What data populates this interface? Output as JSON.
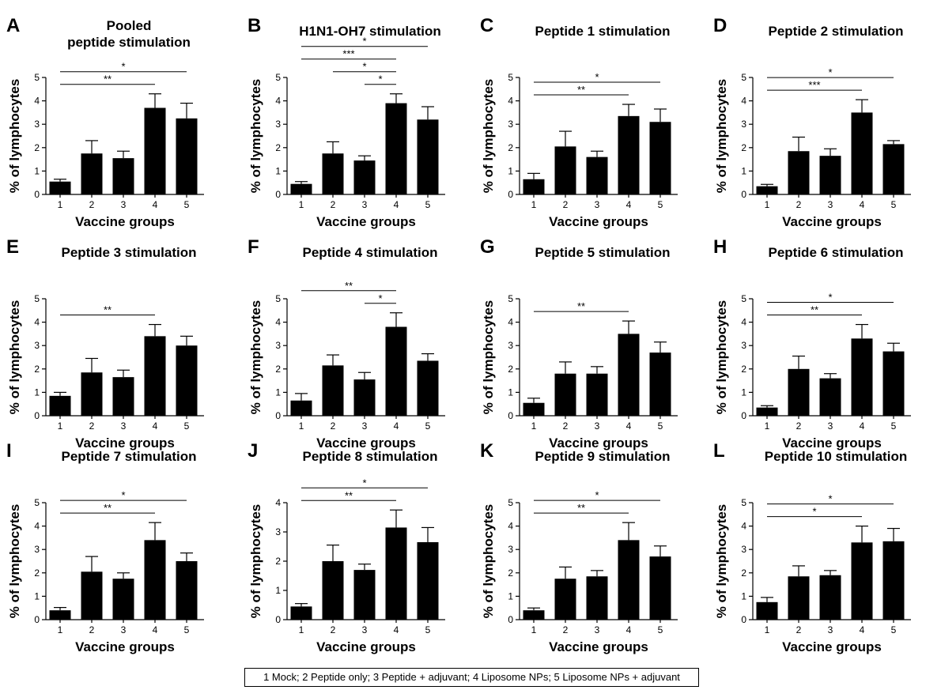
{
  "legend": "1 Mock; 2 Peptide only; 3 Peptide + adjuvant; 4 Liposome NPs; 5 Liposome NPs + adjuvant",
  "chart_data": [
    {
      "type": "bar",
      "panel": "A",
      "title": "Pooled\npeptide stimulation",
      "xlabel": "Vaccine groups",
      "ylabel": "% of lymphocytes",
      "categories": [
        "1",
        "2",
        "3",
        "4",
        "5"
      ],
      "values": [
        0.55,
        1.75,
        1.55,
        3.7,
        3.25
      ],
      "errors": [
        0.1,
        0.55,
        0.3,
        0.6,
        0.65
      ],
      "ylim": [
        0,
        5
      ],
      "yticks": [
        "0",
        "1",
        "2",
        "3",
        "4",
        "5"
      ],
      "significance": [
        {
          "from": 1,
          "to": 4,
          "label": "**"
        },
        {
          "from": 1,
          "to": 5,
          "label": "*"
        }
      ]
    },
    {
      "type": "bar",
      "panel": "B",
      "title": "H1N1-OH7 stimulation",
      "xlabel": "Vaccine groups",
      "ylabel": "% of lymphocytes",
      "categories": [
        "1",
        "2",
        "3",
        "4",
        "5"
      ],
      "values": [
        0.45,
        1.75,
        1.45,
        3.9,
        3.2
      ],
      "errors": [
        0.1,
        0.5,
        0.2,
        0.4,
        0.55
      ],
      "ylim": [
        0,
        5
      ],
      "yticks": [
        "0",
        "1",
        "2",
        "3",
        "4",
        "5"
      ],
      "significance": [
        {
          "from": 3,
          "to": 4,
          "label": "*"
        },
        {
          "from": 2,
          "to": 4,
          "label": "*"
        },
        {
          "from": 1,
          "to": 4,
          "label": "***"
        },
        {
          "from": 1,
          "to": 5,
          "label": "*"
        }
      ]
    },
    {
      "type": "bar",
      "panel": "C",
      "title": "Peptide 1 stimulation",
      "xlabel": "Vaccine groups",
      "ylabel": "% of lymphocytes",
      "categories": [
        "1",
        "2",
        "3",
        "4",
        "5"
      ],
      "values": [
        0.65,
        2.05,
        1.6,
        3.35,
        3.1
      ],
      "errors": [
        0.25,
        0.65,
        0.25,
        0.5,
        0.55
      ],
      "ylim": [
        0,
        5
      ],
      "yticks": [
        "0",
        "1",
        "2",
        "3",
        "4",
        "5"
      ],
      "significance": [
        {
          "from": 1,
          "to": 4,
          "label": "**"
        },
        {
          "from": 1,
          "to": 5,
          "label": "*"
        }
      ]
    },
    {
      "type": "bar",
      "panel": "D",
      "title": "Peptide 2 stimulation",
      "xlabel": "Vaccine groups",
      "ylabel": "% of lymphocytes",
      "categories": [
        "1",
        "2",
        "3",
        "4",
        "5"
      ],
      "values": [
        0.35,
        1.85,
        1.65,
        3.5,
        2.15
      ],
      "errors": [
        0.08,
        0.6,
        0.3,
        0.55,
        0.15
      ],
      "ylim": [
        0,
        5
      ],
      "yticks": [
        "0",
        "1",
        "2",
        "3",
        "4",
        "5"
      ],
      "significance": [
        {
          "from": 1,
          "to": 4,
          "label": "***"
        },
        {
          "from": 1,
          "to": 5,
          "label": "*"
        }
      ]
    },
    {
      "type": "bar",
      "panel": "E",
      "title": "Peptide 3 stimulation",
      "xlabel": "Vaccine groups",
      "ylabel": "% of lymphocytes",
      "categories": [
        "1",
        "2",
        "3",
        "4",
        "5"
      ],
      "values": [
        0.85,
        1.85,
        1.65,
        3.4,
        3.0
      ],
      "errors": [
        0.15,
        0.6,
        0.3,
        0.5,
        0.4
      ],
      "ylim": [
        0,
        5
      ],
      "yticks": [
        "0",
        "1",
        "2",
        "3",
        "4",
        "5"
      ],
      "significance": [
        {
          "from": 1,
          "to": 4,
          "label": "**"
        }
      ]
    },
    {
      "type": "bar",
      "panel": "F",
      "title": "Peptide 4 stimulation",
      "xlabel": "Vaccine groups",
      "ylabel": "% of lymphocytes",
      "categories": [
        "1",
        "2",
        "3",
        "4",
        "5"
      ],
      "values": [
        0.65,
        2.15,
        1.55,
        3.8,
        2.35
      ],
      "errors": [
        0.3,
        0.45,
        0.3,
        0.6,
        0.3
      ],
      "ylim": [
        0,
        5
      ],
      "yticks": [
        "0",
        "1",
        "2",
        "3",
        "4",
        "5"
      ],
      "significance": [
        {
          "from": 3,
          "to": 4,
          "label": "*"
        },
        {
          "from": 1,
          "to": 4,
          "label": "**"
        }
      ]
    },
    {
      "type": "bar",
      "panel": "G",
      "title": "Peptide 5 stimulation",
      "xlabel": "Vaccine groups",
      "ylabel": "% of lymphocytes",
      "categories": [
        "1",
        "2",
        "3",
        "4",
        "5"
      ],
      "values": [
        0.55,
        1.8,
        1.8,
        3.5,
        2.7
      ],
      "errors": [
        0.2,
        0.5,
        0.3,
        0.55,
        0.45
      ],
      "ylim": [
        0,
        5
      ],
      "yticks": [
        "0",
        "1",
        "2",
        "3",
        "4",
        "5"
      ],
      "significance": [
        {
          "from": 1,
          "to": 4,
          "label": "**"
        }
      ]
    },
    {
      "type": "bar",
      "panel": "H",
      "title": "Peptide 6 stimulation",
      "xlabel": "Vaccine groups",
      "ylabel": "% of lymphocytes",
      "categories": [
        "1",
        "2",
        "3",
        "4",
        "5"
      ],
      "values": [
        0.35,
        2.0,
        1.6,
        3.3,
        2.75
      ],
      "errors": [
        0.08,
        0.55,
        0.2,
        0.6,
        0.35
      ],
      "ylim": [
        0,
        5
      ],
      "yticks": [
        "0",
        "1",
        "2",
        "3",
        "4",
        "5"
      ],
      "significance": [
        {
          "from": 1,
          "to": 4,
          "label": "**"
        },
        {
          "from": 1,
          "to": 5,
          "label": "*"
        }
      ]
    },
    {
      "type": "bar",
      "panel": "I",
      "title": "Peptide 7 stimulation",
      "xlabel": "Vaccine groups",
      "ylabel": "% of lymphocytes",
      "categories": [
        "1",
        "2",
        "3",
        "4",
        "5"
      ],
      "values": [
        0.4,
        2.05,
        1.75,
        3.4,
        2.5
      ],
      "errors": [
        0.12,
        0.65,
        0.25,
        0.75,
        0.35
      ],
      "ylim": [
        0,
        5
      ],
      "yticks": [
        "0",
        "1",
        "2",
        "3",
        "4",
        "5"
      ],
      "significance": [
        {
          "from": 1,
          "to": 4,
          "label": "**"
        },
        {
          "from": 1,
          "to": 5,
          "label": "*"
        }
      ]
    },
    {
      "type": "bar",
      "panel": "J",
      "title": "Peptide 8 stimulation",
      "xlabel": "Vaccine groups",
      "ylabel": "% of lymphocytes",
      "categories": [
        "1",
        "2",
        "3",
        "4",
        "5"
      ],
      "values": [
        0.45,
        2.0,
        1.7,
        3.15,
        2.65
      ],
      "errors": [
        0.1,
        0.55,
        0.2,
        0.6,
        0.5
      ],
      "ylim": [
        0,
        4
      ],
      "yticks": [
        "0",
        "1",
        "2",
        "3",
        "4"
      ],
      "significance": [
        {
          "from": 1,
          "to": 4,
          "label": "**"
        },
        {
          "from": 1,
          "to": 5,
          "label": "*"
        }
      ]
    },
    {
      "type": "bar",
      "panel": "K",
      "title": "Peptide 9 stimulation",
      "xlabel": "Vaccine groups",
      "ylabel": "% of lymphocytes",
      "categories": [
        "1",
        "2",
        "3",
        "4",
        "5"
      ],
      "values": [
        0.4,
        1.75,
        1.85,
        3.4,
        2.7
      ],
      "errors": [
        0.1,
        0.5,
        0.25,
        0.75,
        0.45
      ],
      "ylim": [
        0,
        5
      ],
      "yticks": [
        "0",
        "1",
        "2",
        "3",
        "4",
        "5"
      ],
      "significance": [
        {
          "from": 1,
          "to": 4,
          "label": "**"
        },
        {
          "from": 1,
          "to": 5,
          "label": "*"
        }
      ]
    },
    {
      "type": "bar",
      "panel": "L",
      "title": "Peptide 10 stimulation",
      "xlabel": "Vaccine groups",
      "ylabel": "% of lymphocytes",
      "categories": [
        "1",
        "2",
        "3",
        "4",
        "5"
      ],
      "values": [
        0.75,
        1.85,
        1.9,
        3.3,
        3.35
      ],
      "errors": [
        0.2,
        0.45,
        0.2,
        0.7,
        0.55
      ],
      "ylim": [
        0,
        5
      ],
      "yticks": [
        "0",
        "1",
        "2",
        "3",
        "4",
        "5"
      ],
      "significance": [
        {
          "from": 1,
          "to": 4,
          "label": "*"
        },
        {
          "from": 1,
          "to": 5,
          "label": "*"
        }
      ]
    }
  ]
}
